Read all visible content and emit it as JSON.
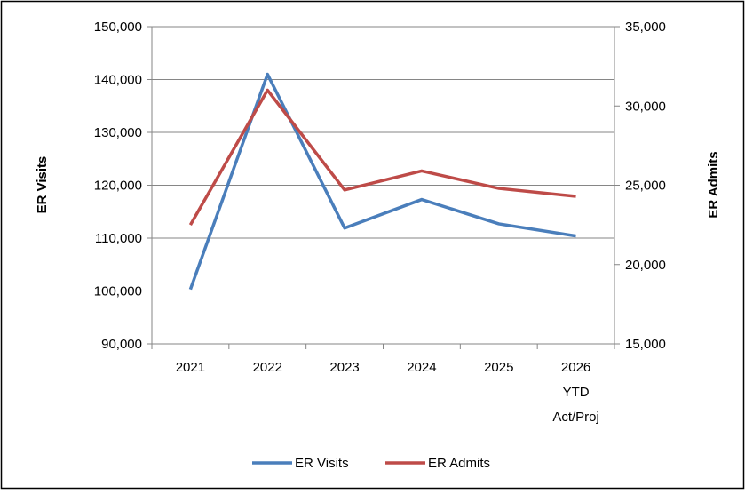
{
  "chart_data": {
    "type": "line",
    "title": "",
    "categories": [
      "2021",
      "2022",
      "2023",
      "2024",
      "2025",
      "2026\nYTD\nAct/Proj"
    ],
    "ylabel_left": "ER Visits",
    "ylabel_right": "ER Admits",
    "ylim_left": [
      90000,
      150000
    ],
    "ylim_right": [
      15000,
      35000
    ],
    "yticks_left": [
      90000,
      100000,
      110000,
      120000,
      130000,
      140000,
      150000
    ],
    "yticks_right": [
      15000,
      20000,
      25000,
      30000,
      35000
    ],
    "grid": true,
    "legend_position": "bottom",
    "series": [
      {
        "name": "ER Visits",
        "axis": "left",
        "color": "#4a7ebb",
        "values": [
          100300,
          141000,
          111900,
          117300,
          112700,
          110400
        ]
      },
      {
        "name": "ER Admits",
        "axis": "right",
        "color": "#be4b48",
        "values": [
          22500,
          31000,
          24700,
          25900,
          24800,
          24300
        ]
      }
    ]
  }
}
